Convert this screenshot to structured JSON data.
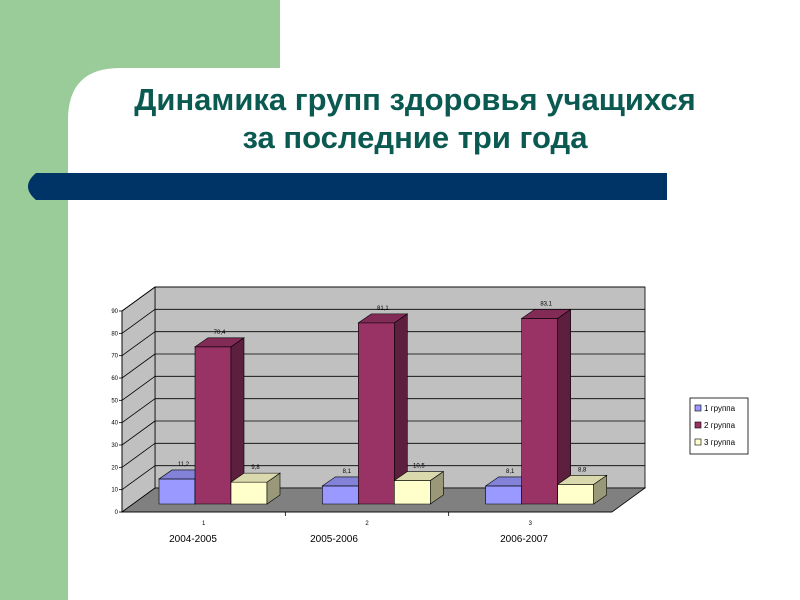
{
  "slide": {
    "title_line1": "Динамика групп здоровья учащихся",
    "title_line2": "за последние три года"
  },
  "colors": {
    "sidebar_green": "#99cc99",
    "title_text": "#0b5a52",
    "accent_bar": "#003366",
    "series_1": "#9999ff",
    "series_2": "#993366",
    "series_3": "#ffffcc",
    "plot_wall": "#c0c0c0",
    "plot_floor": "#808080"
  },
  "chart_data": {
    "type": "bar",
    "categories": [
      "1",
      "2",
      "3"
    ],
    "category_captions": [
      "2004-2005",
      "2005-2006",
      "2006-2007"
    ],
    "series": [
      {
        "name": "1 группа",
        "values": [
          11.2,
          8.1,
          8.1
        ],
        "value_labels": [
          "11,2",
          "8,1",
          "8,1"
        ]
      },
      {
        "name": "2 группа",
        "values": [
          70.4,
          81.1,
          83.1
        ],
        "value_labels": [
          "70,4",
          "81,1",
          "83,1"
        ]
      },
      {
        "name": "3 группа",
        "values": [
          9.8,
          10.5,
          8.8
        ],
        "value_labels": [
          "9,8",
          "10,5",
          "8,8"
        ]
      }
    ],
    "y_ticks": [
      "0",
      "10",
      "20",
      "30",
      "40",
      "50",
      "60",
      "70",
      "80",
      "90"
    ],
    "ylim": [
      0,
      90
    ],
    "grid": true,
    "three_d": true,
    "legend_position": "right"
  }
}
